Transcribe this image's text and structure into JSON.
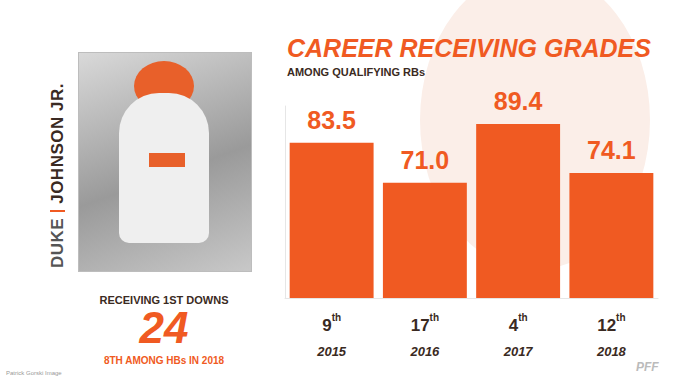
{
  "chart_data": {
    "type": "bar",
    "title": "CAREER RECEIVING GRADES",
    "subtitle": "AMONG QUALIFYING RBs",
    "categories": [
      "2015",
      "2016",
      "2017",
      "2018"
    ],
    "ranks": [
      "9th",
      "17th",
      "4th",
      "12th"
    ],
    "values": [
      83.5,
      71.0,
      89.4,
      74.1
    ],
    "value_labels": [
      "83.5",
      "71.0",
      "89.4",
      "74.1"
    ],
    "color": "#f05a22",
    "ylim": [
      35,
      95
    ],
    "grid": false,
    "data_labels": true,
    "tick_labels": "x"
  },
  "sidebar": {
    "first_name": "DUKE",
    "last_name": "JOHNSON JR.",
    "stat_label": "RECEIVING 1ST DOWNS",
    "stat_value": 24,
    "stat_note": "8TH AMONG HBs IN 2018",
    "credit": "Patrick Gorski Image",
    "logo": "PFF"
  }
}
